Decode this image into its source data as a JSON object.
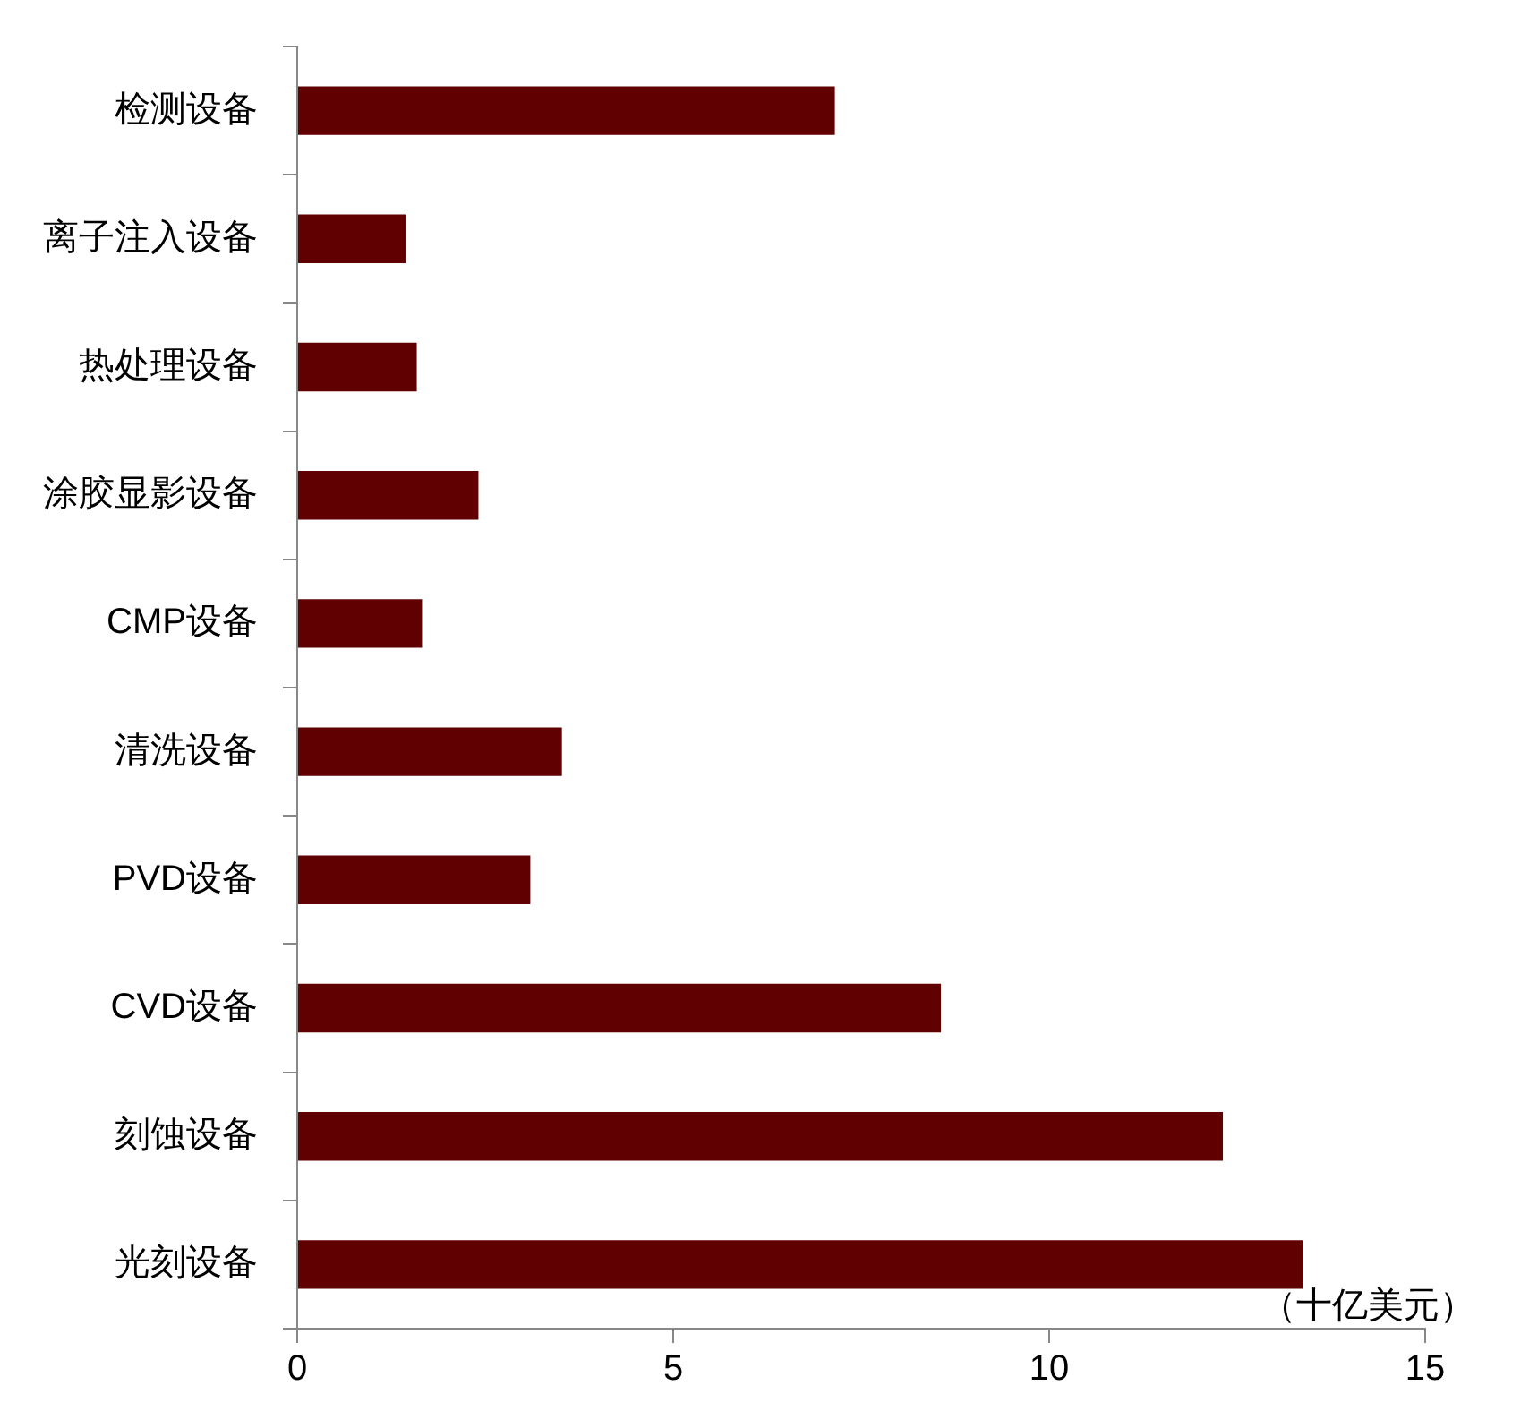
{
  "chart_data": {
    "type": "bar",
    "orientation": "horizontal",
    "categories": [
      "检测设备",
      "离子注入设备",
      "热处理设备",
      "涂胶显影设备",
      "CMP设备",
      "清洗设备",
      "PVD设备",
      "CVD设备",
      "刻蚀设备",
      "光刻设备"
    ],
    "values": [
      7.15,
      1.44,
      1.59,
      2.41,
      1.66,
      3.52,
      3.1,
      8.56,
      12.31,
      13.37
    ],
    "color": "#600000",
    "xlabel": "（十亿美元）",
    "xlim": [
      0,
      15
    ],
    "xticks": [
      0,
      5,
      10,
      15
    ],
    "grid": false,
    "legend": false
  }
}
